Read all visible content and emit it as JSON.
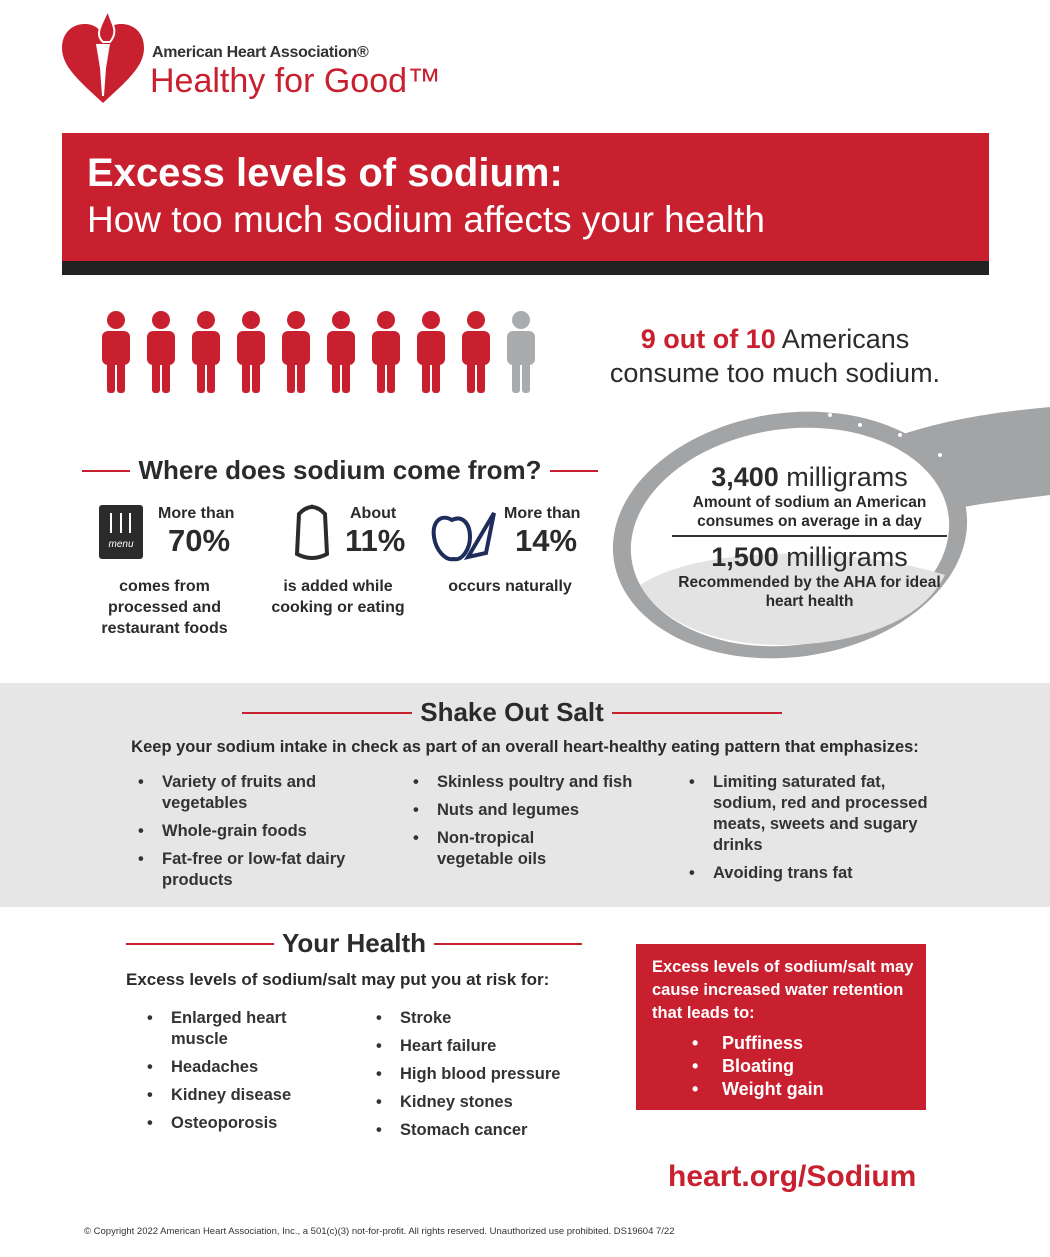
{
  "logo": {
    "org": "American Heart Association®",
    "tagline": "Healthy for Good™"
  },
  "banner": {
    "title": "Excess levels of sodium:",
    "subtitle": "How too much sodium affects your health"
  },
  "stat": {
    "highlight": "9 out of 10",
    "line1": "Americans",
    "line2": "consume too much sodium."
  },
  "sources": {
    "heading": "Where does sodium come from?",
    "items": [
      {
        "prefix": "More than",
        "value": "70%",
        "desc": "comes from processed and restaurant foods"
      },
      {
        "prefix": "About",
        "value": "11%",
        "desc": "is added while cooking or eating"
      },
      {
        "prefix": "More than",
        "value": "14%",
        "desc": "occurs naturally"
      }
    ],
    "menu_label": "menu"
  },
  "spoon": [
    {
      "amount": "3,400",
      "unit": "milligrams",
      "desc": "Amount of sodium an American consumes on average in a day"
    },
    {
      "amount": "1,500",
      "unit": "milligrams",
      "desc": "Recommended by the AHA for ideal heart health"
    }
  ],
  "shake": {
    "heading": "Shake Out Salt",
    "intro": "Keep your sodium intake in check as part of an overall heart-healthy eating pattern that emphasizes:",
    "columns": [
      [
        "Variety of fruits and vegetables",
        "Whole-grain foods",
        "Fat-free or low-fat dairy products"
      ],
      [
        "Skinless poultry and fish",
        "Nuts and legumes",
        "Non-tropical vegetable oils"
      ],
      [
        "Limiting saturated fat, sodium, red and processed meats, sweets and sugary drinks",
        "Avoiding trans fat"
      ]
    ]
  },
  "health": {
    "heading": "Your Health",
    "intro": "Excess levels of sodium/salt may put you at risk for:",
    "columns": [
      [
        "Enlarged heart muscle",
        "Headaches",
        "Kidney disease",
        "Osteoporosis"
      ],
      [
        "Stroke",
        "Heart failure",
        "High blood pressure",
        "Kidney stones",
        "Stomach cancer"
      ]
    ],
    "box": {
      "text": "Excess levels of sodium/salt may cause increased water retention that leads to:",
      "items": [
        "Puffiness",
        "Bloating",
        "Weight gain"
      ]
    }
  },
  "url": "heart.org/Sodium",
  "footer": "© Copyright 2022 American Heart Association, Inc., a 501(c)(3) not-for-profit. All rights reserved. Unauthorized use prohibited. DS19604 7/22"
}
